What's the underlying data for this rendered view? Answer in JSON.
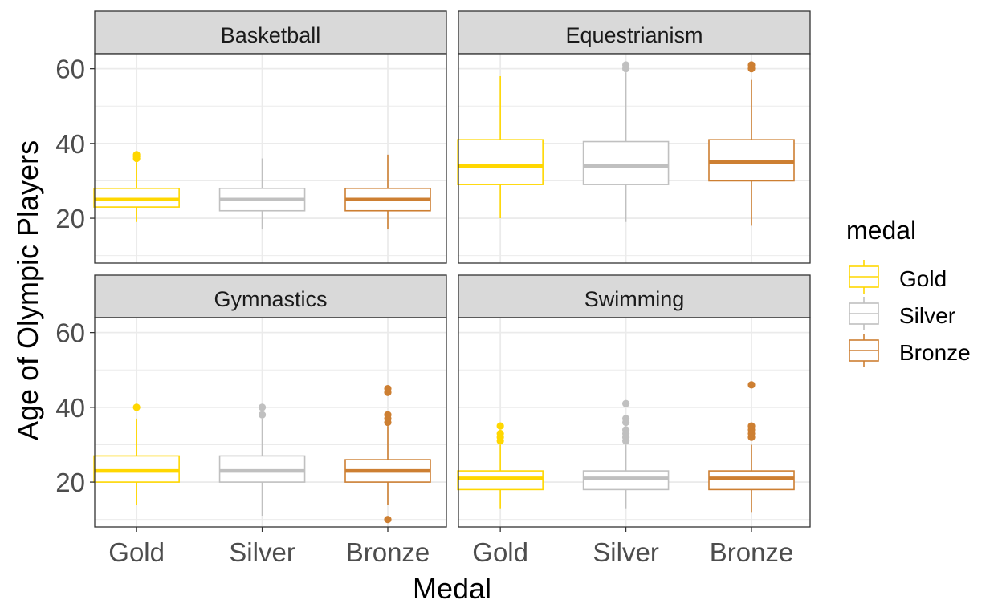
{
  "chart_data": {
    "type": "box",
    "xlabel": "Medal",
    "ylabel": "Age of Olympic Players",
    "ylim": [
      8,
      64
    ],
    "yticks": [
      20,
      40,
      60
    ],
    "categories": [
      "Gold",
      "Silver",
      "Bronze"
    ],
    "legend": {
      "title": "medal",
      "position": "right",
      "entries": [
        "Gold",
        "Silver",
        "Bronze"
      ]
    },
    "colors": {
      "Gold": "#FFD700",
      "Silver": "#C0C0C0",
      "Bronze": "#CD7F32"
    },
    "grid": true,
    "facets": [
      {
        "title": "Basketball",
        "boxes": [
          {
            "category": "Gold",
            "min": 19,
            "q1": 23,
            "median": 25,
            "q3": 28,
            "max": 35,
            "outliers": [
              36,
              36.5,
              37
            ]
          },
          {
            "category": "Silver",
            "min": 17,
            "q1": 22,
            "median": 25,
            "q3": 28,
            "max": 36,
            "outliers": []
          },
          {
            "category": "Bronze",
            "min": 17,
            "q1": 22,
            "median": 25,
            "q3": 28,
            "max": 37,
            "outliers": []
          }
        ]
      },
      {
        "title": "Equestrianism",
        "boxes": [
          {
            "category": "Gold",
            "min": 20,
            "q1": 29,
            "median": 34,
            "q3": 41,
            "max": 58,
            "outliers": []
          },
          {
            "category": "Silver",
            "min": 19,
            "q1": 29,
            "median": 34,
            "q3": 40.5,
            "max": 59,
            "outliers": [
              60,
              61
            ]
          },
          {
            "category": "Bronze",
            "min": 18,
            "q1": 30,
            "median": 35,
            "q3": 41,
            "max": 57,
            "outliers": [
              60,
              61
            ]
          }
        ]
      },
      {
        "title": "Gymnastics",
        "boxes": [
          {
            "category": "Gold",
            "min": 14,
            "q1": 20,
            "median": 23,
            "q3": 27,
            "max": 37,
            "outliers": [
              40
            ]
          },
          {
            "category": "Silver",
            "min": 11,
            "q1": 20,
            "median": 23,
            "q3": 27,
            "max": 37,
            "outliers": [
              38,
              40
            ]
          },
          {
            "category": "Bronze",
            "min": 14,
            "q1": 20,
            "median": 23,
            "q3": 26,
            "max": 35,
            "outliers": [
              10,
              36,
              37,
              38,
              44,
              45
            ]
          }
        ]
      },
      {
        "title": "Swimming",
        "boxes": [
          {
            "category": "Gold",
            "min": 13,
            "q1": 18,
            "median": 21,
            "q3": 23,
            "max": 30,
            "outliers": [
              31,
              32,
              33,
              35
            ]
          },
          {
            "category": "Silver",
            "min": 13,
            "q1": 18,
            "median": 21,
            "q3": 23,
            "max": 30,
            "outliers": [
              31,
              32,
              33,
              34,
              36,
              37,
              41
            ]
          },
          {
            "category": "Bronze",
            "min": 12,
            "q1": 18,
            "median": 21,
            "q3": 23,
            "max": 30,
            "outliers": [
              32,
              33,
              34,
              35,
              46
            ]
          }
        ]
      }
    ]
  }
}
